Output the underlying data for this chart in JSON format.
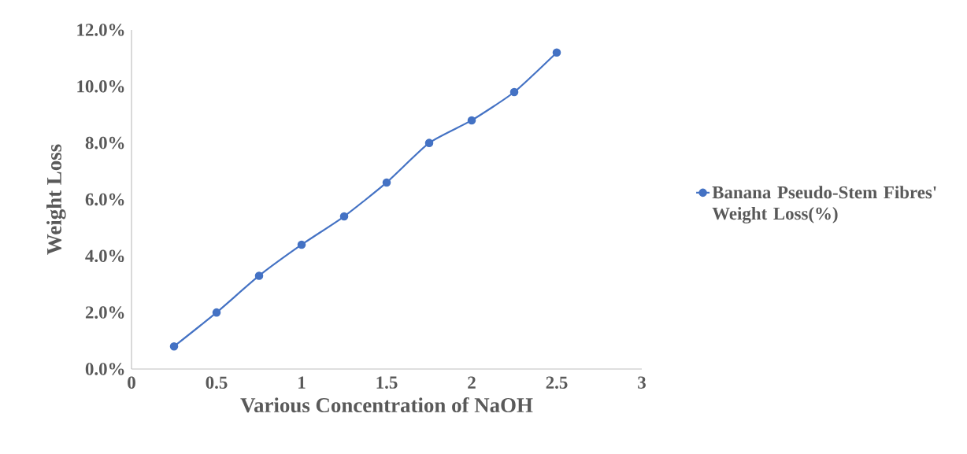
{
  "chart_data": {
    "type": "line",
    "xlabel": "Various Concentration of NaOH",
    "ylabel": "Weight Loss",
    "x": [
      0.25,
      0.5,
      0.75,
      1,
      1.25,
      1.5,
      1.75,
      2,
      2.25,
      2.5
    ],
    "series": [
      {
        "name": "Banana Pseudo-Stem Fibres' Weight Loss(%)",
        "color": "#4472c4",
        "values": [
          0.8,
          2.0,
          3.3,
          4.4,
          5.4,
          6.6,
          8.0,
          8.8,
          9.8,
          11.2
        ]
      }
    ],
    "xlim": [
      0,
      3
    ],
    "xticks": [
      0,
      0.5,
      1,
      1.5,
      2,
      2.5,
      3
    ],
    "ylim": [
      0,
      12
    ],
    "yticks": [
      {
        "value": 0,
        "label": "0.0%"
      },
      {
        "value": 2,
        "label": "2.0%"
      },
      {
        "value": 4,
        "label": "4.0%"
      },
      {
        "value": 6,
        "label": "6.0%"
      },
      {
        "value": 8,
        "label": "8.0%"
      },
      {
        "value": 10,
        "label": "10.0%"
      },
      {
        "value": 12,
        "label": "12.0%"
      }
    ],
    "legend": "right",
    "marker": "circle",
    "line_style": "solid"
  }
}
